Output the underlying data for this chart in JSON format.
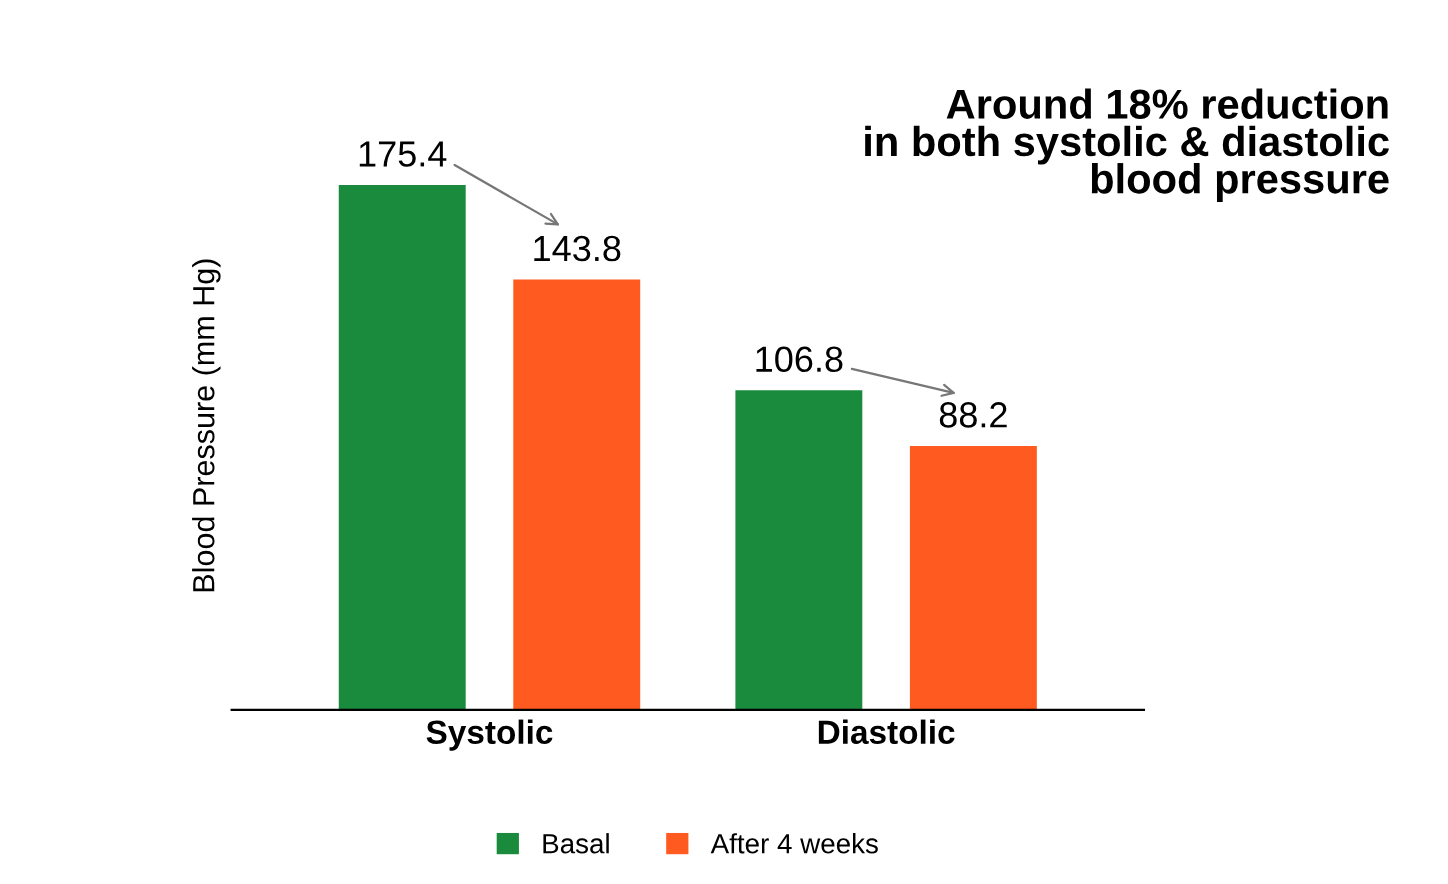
{
  "chart_data": {
    "type": "bar",
    "title": "Around 18% reduction\nin both systolic & diastolic\nblood pressure",
    "ylabel": "Blood Pressure (mm Hg)",
    "categories": [
      "Systolic",
      "Diastolic"
    ],
    "series": [
      {
        "name": "Basal",
        "color": "#1a8a3c",
        "values": [
          175.4,
          106.8
        ]
      },
      {
        "name": "After 4 weeks",
        "color": "#ff5a1f",
        "values": [
          143.8,
          88.2
        ]
      }
    ],
    "data_labels": true,
    "legend": "bottom",
    "grid": false,
    "tick_labels": "x"
  }
}
